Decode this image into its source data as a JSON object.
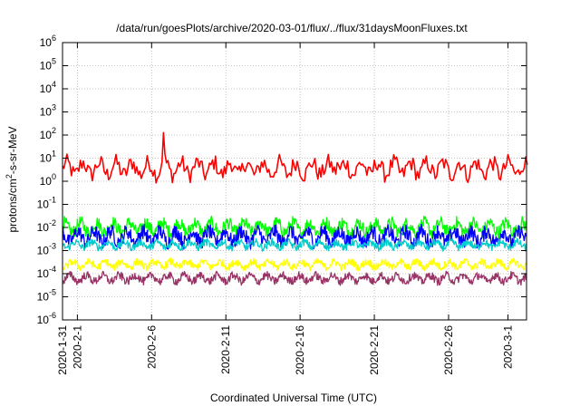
{
  "chart_data": {
    "type": "line",
    "title": "/data/run/goesPlots/archive/2020-03-01/flux/../flux/31daysMoonFluxes.txt",
    "xlabel": "Coordinated Universal Time (UTC)",
    "ylabel": {
      "base": "protons/cm",
      "sup": "2",
      "rest": "-s-sr-MeV"
    },
    "y_scale": "log",
    "ylim_exp": [
      -6,
      6
    ],
    "y_ticks": [
      {
        "exp": "-6"
      },
      {
        "exp": "-5"
      },
      {
        "exp": "-4"
      },
      {
        "exp": "-3"
      },
      {
        "exp": "-2"
      },
      {
        "exp": "-1"
      },
      {
        "exp": "0"
      },
      {
        "exp": "1"
      },
      {
        "exp": "2"
      },
      {
        "exp": "3"
      },
      {
        "exp": "4"
      },
      {
        "exp": "5"
      },
      {
        "exp": "6"
      }
    ],
    "xlim_days": [
      0,
      31.25
    ],
    "x_ticks": [
      {
        "label": "2020-1-31",
        "day": 0
      },
      {
        "label": "2020-2-1",
        "day": 1
      },
      {
        "label": "2020-2-6",
        "day": 6
      },
      {
        "label": "2020-2-11",
        "day": 11
      },
      {
        "label": "2020-2-16",
        "day": 16
      },
      {
        "label": "2020-2-21",
        "day": 21
      },
      {
        "label": "2020-2-26",
        "day": 26
      },
      {
        "label": "2020-3-1",
        "day": 30
      }
    ],
    "grid": true,
    "legend": "none",
    "series": [
      {
        "color": "#ff0000",
        "samples_per_day": 10,
        "median_log10": 0.55,
        "noise_log10": 0.45,
        "spikes": [
          [
            6.8,
            1.1
          ],
          [
            18.5,
            0.5
          ]
        ]
      },
      {
        "color": "#00ff00",
        "samples_per_day": 24,
        "median_log10": -2.0,
        "noise_log10": 0.35
      },
      {
        "color": "#0000ff",
        "samples_per_day": 24,
        "median_log10": -2.4,
        "noise_log10": 0.4
      },
      {
        "color": "#00cccc",
        "samples_per_day": 24,
        "median_log10": -2.75,
        "noise_log10": 0.2
      },
      {
        "color": "#ffff00",
        "samples_per_day": 24,
        "median_log10": -3.6,
        "noise_log10": 0.2
      },
      {
        "color": "#993366",
        "samples_per_day": 24,
        "median_log10": -4.2,
        "noise_log10": 0.22
      }
    ]
  }
}
